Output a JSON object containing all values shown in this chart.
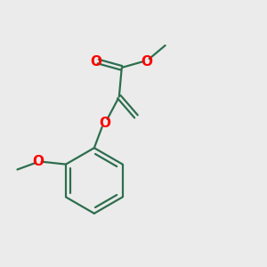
{
  "background_color": "#ebebeb",
  "bond_color": "#2d6e4e",
  "oxygen_color": "#ff0000",
  "line_width": 1.6,
  "figsize": [
    3.0,
    3.0
  ],
  "dpi": 100,
  "xlim": [
    0,
    10
  ],
  "ylim": [
    0,
    10
  ]
}
